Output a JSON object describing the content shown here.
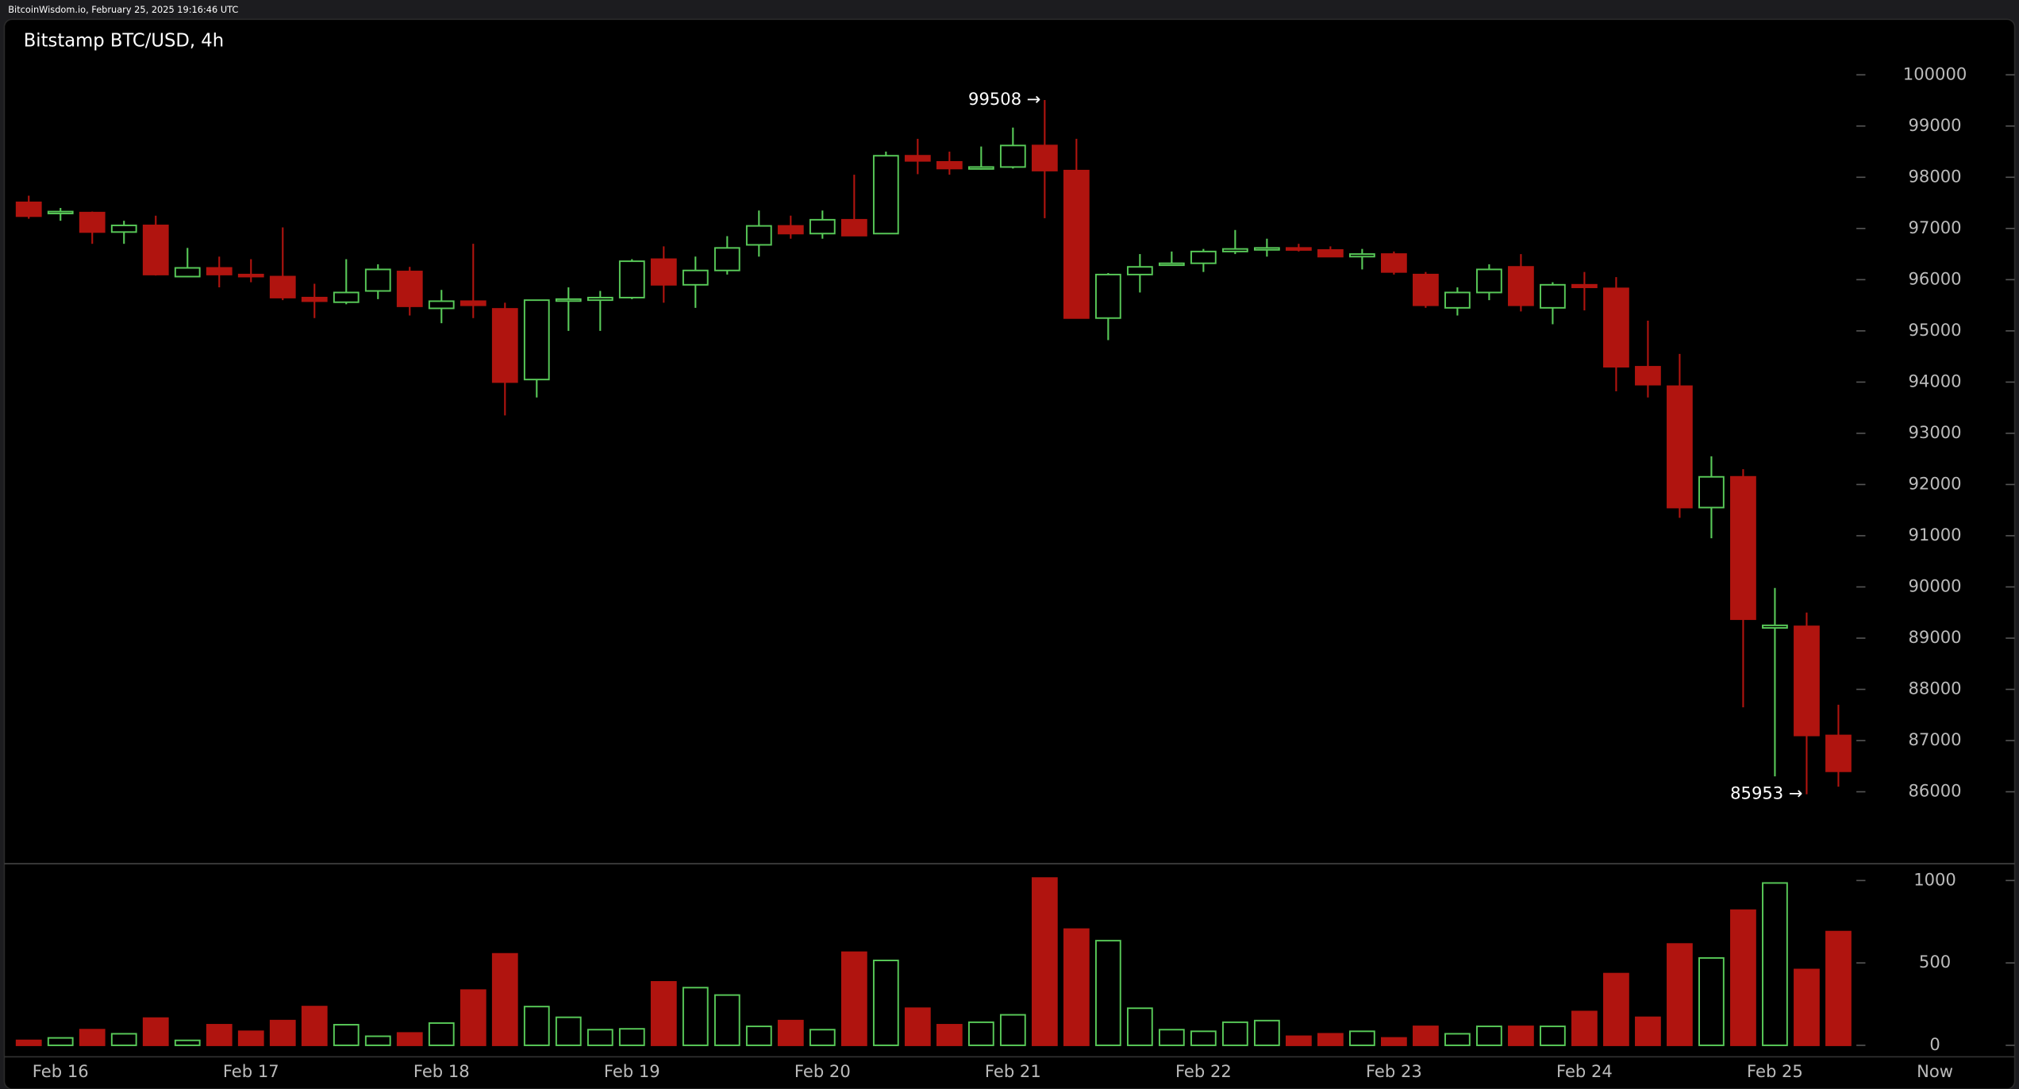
{
  "header": "BitcoinWisdom.io, February 25, 2025 19:16:46 UTC",
  "chart_data": {
    "type": "candlestick",
    "title": "Bitstamp BTC/USD, 4h",
    "now_label": "Now",
    "up_color": "#58c958",
    "down_color": "#b0140f",
    "categories": [
      null,
      "Feb 16",
      null,
      null,
      null,
      null,
      null,
      "Feb 17",
      null,
      null,
      null,
      null,
      null,
      "Feb 18",
      null,
      null,
      null,
      null,
      null,
      "Feb 19",
      null,
      null,
      null,
      null,
      null,
      "Feb 20",
      null,
      null,
      null,
      null,
      null,
      "Feb 21",
      null,
      null,
      null,
      null,
      null,
      "Feb 22",
      null,
      null,
      null,
      null,
      null,
      "Feb 23",
      null,
      null,
      null,
      null,
      null,
      "Feb 24",
      null,
      null,
      null,
      null,
      null,
      "Feb 25",
      null,
      null
    ],
    "open": [
      97510,
      97300,
      97310,
      96930,
      97060,
      96060,
      96230,
      96100,
      96060,
      95650,
      95560,
      95780,
      96160,
      95440,
      95580,
      95430,
      94050,
      95600,
      95600,
      95650,
      96400,
      95900,
      96180,
      96680,
      97050,
      96900,
      97170,
      96900,
      98420,
      98300,
      98170,
      98200,
      98620,
      98130,
      95250,
      96100,
      96300,
      96320,
      96550,
      96600,
      96620,
      96580,
      96450,
      96500,
      96100,
      95450,
      95750,
      96250,
      95450,
      95900,
      95830,
      94300,
      93920,
      91550,
      92150,
      89200,
      89230,
      87100
    ],
    "high": [
      97640,
      97400,
      97330,
      97150,
      97250,
      96620,
      96450,
      96400,
      97020,
      95920,
      96400,
      96300,
      96250,
      95800,
      96700,
      95550,
      95600,
      95850,
      95780,
      96400,
      96650,
      96450,
      96850,
      97350,
      97250,
      97350,
      98050,
      98500,
      98750,
      98500,
      98600,
      98970,
      99508,
      98750,
      96130,
      96500,
      96550,
      96600,
      96970,
      96800,
      96700,
      96650,
      96600,
      96550,
      96150,
      95850,
      96300,
      96500,
      95950,
      96150,
      96050,
      95200,
      94550,
      92550,
      92300,
      89980,
      89500,
      87700
    ],
    "low": [
      97190,
      97150,
      96700,
      96700,
      96080,
      96050,
      95850,
      95950,
      95600,
      95250,
      95520,
      95620,
      95300,
      95150,
      95250,
      93350,
      93700,
      95000,
      95000,
      95620,
      95550,
      95450,
      96100,
      96450,
      96800,
      96800,
      96850,
      96900,
      98060,
      98050,
      98150,
      98170,
      97200,
      95250,
      94820,
      95750,
      96280,
      96150,
      96500,
      96450,
      96550,
      96450,
      96200,
      96100,
      95450,
      95300,
      95600,
      95380,
      95130,
      95400,
      93820,
      93700,
      91350,
      90950,
      87650,
      86300,
      85953,
      86100
    ],
    "close": [
      97240,
      97330,
      96930,
      97060,
      96100,
      96230,
      96100,
      96060,
      95650,
      95580,
      95750,
      96200,
      95480,
      95580,
      95500,
      94000,
      95600,
      95620,
      95650,
      96360,
      95900,
      96180,
      96620,
      97050,
      96900,
      97170,
      96860,
      98420,
      98320,
      98170,
      98200,
      98620,
      98130,
      95250,
      96100,
      96250,
      96320,
      96550,
      96600,
      96620,
      96580,
      96450,
      96500,
      96150,
      95500,
      95750,
      96200,
      95500,
      95900,
      95850,
      94300,
      93950,
      91550,
      92150,
      89370,
      89250,
      87100,
      86400
    ],
    "volume": [
      30,
      45,
      95,
      70,
      165,
      30,
      125,
      85,
      150,
      235,
      125,
      55,
      75,
      135,
      335,
      555,
      235,
      170,
      95,
      100,
      385,
      350,
      305,
      115,
      150,
      95,
      565,
      515,
      225,
      125,
      140,
      185,
      1015,
      705,
      635,
      225,
      95,
      85,
      140,
      150,
      55,
      70,
      85,
      45,
      115,
      70,
      115,
      115,
      115,
      205,
      435,
      170,
      615,
      530,
      820,
      985,
      460,
      690
    ],
    "ylim": [
      84620,
      100330
    ],
    "yticks": [
      86000,
      87000,
      88000,
      89000,
      90000,
      91000,
      92000,
      93000,
      94000,
      95000,
      96000,
      97000,
      98000,
      99000,
      100000
    ],
    "volume_ylim": [
      -62,
      1094
    ],
    "volume_ticks": [
      0,
      500,
      1000
    ],
    "annotations": [
      {
        "value": 99508,
        "label": "99508 →"
      },
      {
        "value": 85953,
        "label": "85953 →"
      }
    ]
  }
}
